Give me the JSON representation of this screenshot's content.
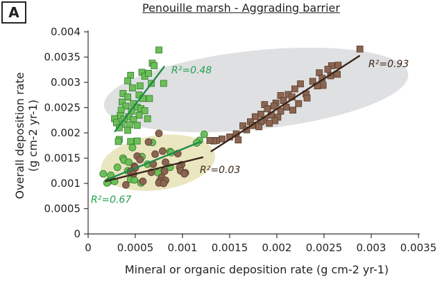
{
  "panel_label": "A",
  "chart_data": {
    "type": "scatter",
    "title": "Penouille marsh - Aggrading barrier",
    "xlabel": "Mineral or organic deposition rate (g cm-2 yr-1)",
    "ylabel_line1": "Overall deposition rate",
    "ylabel_line2": "(g cm-2 yr-1)",
    "xlim": [
      0,
      0.0035
    ],
    "ylim": [
      0,
      0.004
    ],
    "x_ticks": [
      0,
      0.0005,
      0.001,
      0.0015,
      0.002,
      0.0025,
      0.003,
      0.0035
    ],
    "x_tick_labels": [
      "0",
      "0.0005",
      "0.001",
      "0.0015",
      "0.002",
      "0.0025",
      "0.003",
      "0.0035"
    ],
    "y_ticks": [
      0,
      0.0005,
      0.001,
      0.0015,
      0.002,
      0.0025,
      0.003,
      0.0035,
      0.004
    ],
    "y_tick_labels": [
      "0",
      "0.0005",
      "0.001",
      "0.0015",
      "0.002",
      "0.0025",
      "0.003",
      "0.0035",
      "0.004"
    ],
    "grid": false,
    "colors": {
      "green": "#6cbf58",
      "green_edge": "#2f7a2a",
      "green_line": "#1f8a4a",
      "green_label": "#21a04e",
      "brown": "#8a6551",
      "brown_edge": "#5a3c2c",
      "brown_line": "#3a2418",
      "brown_label": "#3a2418",
      "grey_ellipse": "#d9dadd",
      "yellow_ellipse": "#e6e2b4"
    },
    "series": [
      {
        "marker": "square",
        "color": "green",
        "points": [
          [
            0.00075,
            0.00364
          ],
          [
            0.00068,
            0.00338
          ],
          [
            0.0007,
            0.00333
          ],
          [
            0.00057,
            0.0032
          ],
          [
            0.0006,
            0.00312
          ],
          [
            0.00045,
            0.00314
          ],
          [
            0.00064,
            0.00318
          ],
          [
            0.0008,
            0.00298
          ],
          [
            0.00067,
            0.00298
          ],
          [
            0.00055,
            0.00293
          ],
          [
            0.00042,
            0.00303
          ],
          [
            0.00047,
            0.00289
          ],
          [
            0.00037,
            0.00278
          ],
          [
            0.00054,
            0.00275
          ],
          [
            0.00042,
            0.00271
          ],
          [
            0.00058,
            0.00268
          ],
          [
            0.00065,
            0.00268
          ],
          [
            0.00036,
            0.00261
          ],
          [
            0.00048,
            0.00258
          ],
          [
            0.0004,
            0.00253
          ],
          [
            0.00052,
            0.00251
          ],
          [
            0.00056,
            0.00248
          ],
          [
            0.00035,
            0.00245
          ],
          [
            0.00046,
            0.00243
          ],
          [
            0.0006,
            0.00244
          ],
          [
            0.00034,
            0.00234
          ],
          [
            0.00043,
            0.00232
          ],
          [
            0.00054,
            0.00235
          ],
          [
            0.00028,
            0.00228
          ],
          [
            0.00038,
            0.00227
          ],
          [
            0.00048,
            0.00226
          ],
          [
            0.00063,
            0.00228
          ],
          [
            0.0003,
            0.0022
          ],
          [
            0.00036,
            0.00217
          ],
          [
            0.00044,
            0.00216
          ],
          [
            0.00052,
            0.00215
          ],
          [
            0.00033,
            0.0021
          ],
          [
            0.00042,
            0.00205
          ],
          [
            0.00033,
            0.00187
          ],
          [
            0.00045,
            0.00183
          ],
          [
            0.00052,
            0.00184
          ],
          [
            0.00032,
            0.00183
          ]
        ]
      },
      {
        "marker": "square",
        "color": "brown",
        "points": [
          [
            0.00288,
            0.00366
          ],
          [
            0.00265,
            0.00334
          ],
          [
            0.00258,
            0.00333
          ],
          [
            0.00254,
            0.00326
          ],
          [
            0.00245,
            0.00319
          ],
          [
            0.00264,
            0.00316
          ],
          [
            0.00257,
            0.00313
          ],
          [
            0.00248,
            0.00308
          ],
          [
            0.00238,
            0.00302
          ],
          [
            0.00225,
            0.00297
          ],
          [
            0.00249,
            0.00294
          ],
          [
            0.00243,
            0.00293
          ],
          [
            0.00219,
            0.00287
          ],
          [
            0.00231,
            0.00277
          ],
          [
            0.00212,
            0.00276
          ],
          [
            0.00204,
            0.00274
          ],
          [
            0.00216,
            0.00271
          ],
          [
            0.00232,
            0.00269
          ],
          [
            0.00207,
            0.00264
          ],
          [
            0.00199,
            0.00259
          ],
          [
            0.00223,
            0.00258
          ],
          [
            0.00187,
            0.00256
          ],
          [
            0.00197,
            0.00253
          ],
          [
            0.0021,
            0.00251
          ],
          [
            0.0019,
            0.00248
          ],
          [
            0.00204,
            0.00243
          ],
          [
            0.00217,
            0.00245
          ],
          [
            0.00183,
            0.00237
          ],
          [
            0.00194,
            0.00235
          ],
          [
            0.00177,
            0.00232
          ],
          [
            0.00201,
            0.00231
          ],
          [
            0.00187,
            0.00225
          ],
          [
            0.00198,
            0.00224
          ],
          [
            0.00172,
            0.00222
          ],
          [
            0.00183,
            0.00222
          ],
          [
            0.00192,
            0.00219
          ],
          [
            0.00164,
            0.00214
          ],
          [
            0.00174,
            0.00215
          ],
          [
            0.00181,
            0.00212
          ],
          [
            0.00168,
            0.00206
          ],
          [
            0.00157,
            0.00198
          ],
          [
            0.0015,
            0.00192
          ],
          [
            0.00142,
            0.00188
          ],
          [
            0.00159,
            0.00186
          ],
          [
            0.00136,
            0.00185
          ],
          [
            0.00133,
            0.00184
          ],
          [
            0.00129,
            0.00185
          ]
        ]
      },
      {
        "marker": "circle",
        "color": "green",
        "points": [
          [
            0.00123,
            0.00197
          ],
          [
            0.00118,
            0.00185
          ],
          [
            0.00115,
            0.0018
          ],
          [
            0.00068,
            0.00181
          ],
          [
            0.00047,
            0.00171
          ],
          [
            0.00087,
            0.00163
          ],
          [
            0.00088,
            0.00161
          ],
          [
            0.00037,
            0.0015
          ],
          [
            0.00038,
            0.00146
          ],
          [
            0.00057,
            0.00153
          ],
          [
            0.00043,
            0.00142
          ],
          [
            0.00063,
            0.00138
          ],
          [
            0.00031,
            0.00132
          ],
          [
            0.00087,
            0.00132
          ],
          [
            0.00042,
            0.00125
          ],
          [
            0.0008,
            0.00124
          ],
          [
            0.00074,
            0.00121
          ],
          [
            0.00016,
            0.00119
          ],
          [
            0.00024,
            0.00116
          ],
          [
            0.00045,
            0.00108
          ],
          [
            0.00049,
            0.00107
          ],
          [
            0.00022,
            0.00104
          ],
          [
            0.00028,
            0.00104
          ],
          [
            0.0002,
            0.00101
          ],
          [
            0.00056,
            0.00101
          ]
        ]
      },
      {
        "marker": "circle",
        "color": "brown",
        "points": [
          [
            0.00075,
            0.00199
          ],
          [
            0.00064,
            0.00182
          ],
          [
            0.00079,
            0.00164
          ],
          [
            0.00071,
            0.00158
          ],
          [
            0.00095,
            0.00159
          ],
          [
            0.00052,
            0.00154
          ],
          [
            0.00055,
            0.00147
          ],
          [
            0.00082,
            0.00142
          ],
          [
            0.00069,
            0.00138
          ],
          [
            0.00099,
            0.00137
          ],
          [
            0.00049,
            0.00134
          ],
          [
            0.00097,
            0.00132
          ],
          [
            0.0005,
            0.00131
          ],
          [
            0.00098,
            0.00125
          ],
          [
            0.00045,
            0.00124
          ],
          [
            0.00081,
            0.00124
          ],
          [
            0.00067,
            0.00122
          ],
          [
            0.00103,
            0.00121
          ],
          [
            0.00102,
            0.00119
          ],
          [
            0.00048,
            0.00119
          ],
          [
            0.00078,
            0.00112
          ],
          [
            0.00076,
            0.00105
          ],
          [
            0.00058,
            0.00104
          ],
          [
            0.00082,
            0.00106
          ],
          [
            0.00075,
            0.00101
          ],
          [
            0.0008,
            0.001
          ],
          [
            0.0004,
            0.00097
          ]
        ]
      }
    ],
    "fit_lines": [
      {
        "color": "green_line",
        "r2_label": "R²=0.48",
        "from": [
          0.00028,
          0.00202
        ],
        "to": [
          0.00081,
          0.00332
        ]
      },
      {
        "color": "brown_line",
        "r2_label": "R²=0.93",
        "from": [
          0.0013,
          0.00163
        ],
        "to": [
          0.00288,
          0.00353
        ]
      },
      {
        "color": "green_line",
        "r2_label": "R²=0.67",
        "from": [
          0.00018,
          0.00106
        ],
        "to": [
          0.0012,
          0.00183
        ]
      },
      {
        "color": "brown_line",
        "r2_label": "R²=0.03",
        "from": [
          0.00018,
          0.00104
        ],
        "to": [
          0.00122,
          0.00152
        ]
      }
    ],
    "ellipses": [
      {
        "color": "grey_ellipse",
        "cx": 0.00178,
        "cy": 0.00285,
        "rx": 0.00162,
        "ry": 0.00078,
        "angle_deg": -6
      },
      {
        "color": "yellow_ellipse",
        "cx": 0.00074,
        "cy": 0.00141,
        "rx": 0.00061,
        "ry": 0.00054,
        "angle_deg": -8
      }
    ]
  }
}
